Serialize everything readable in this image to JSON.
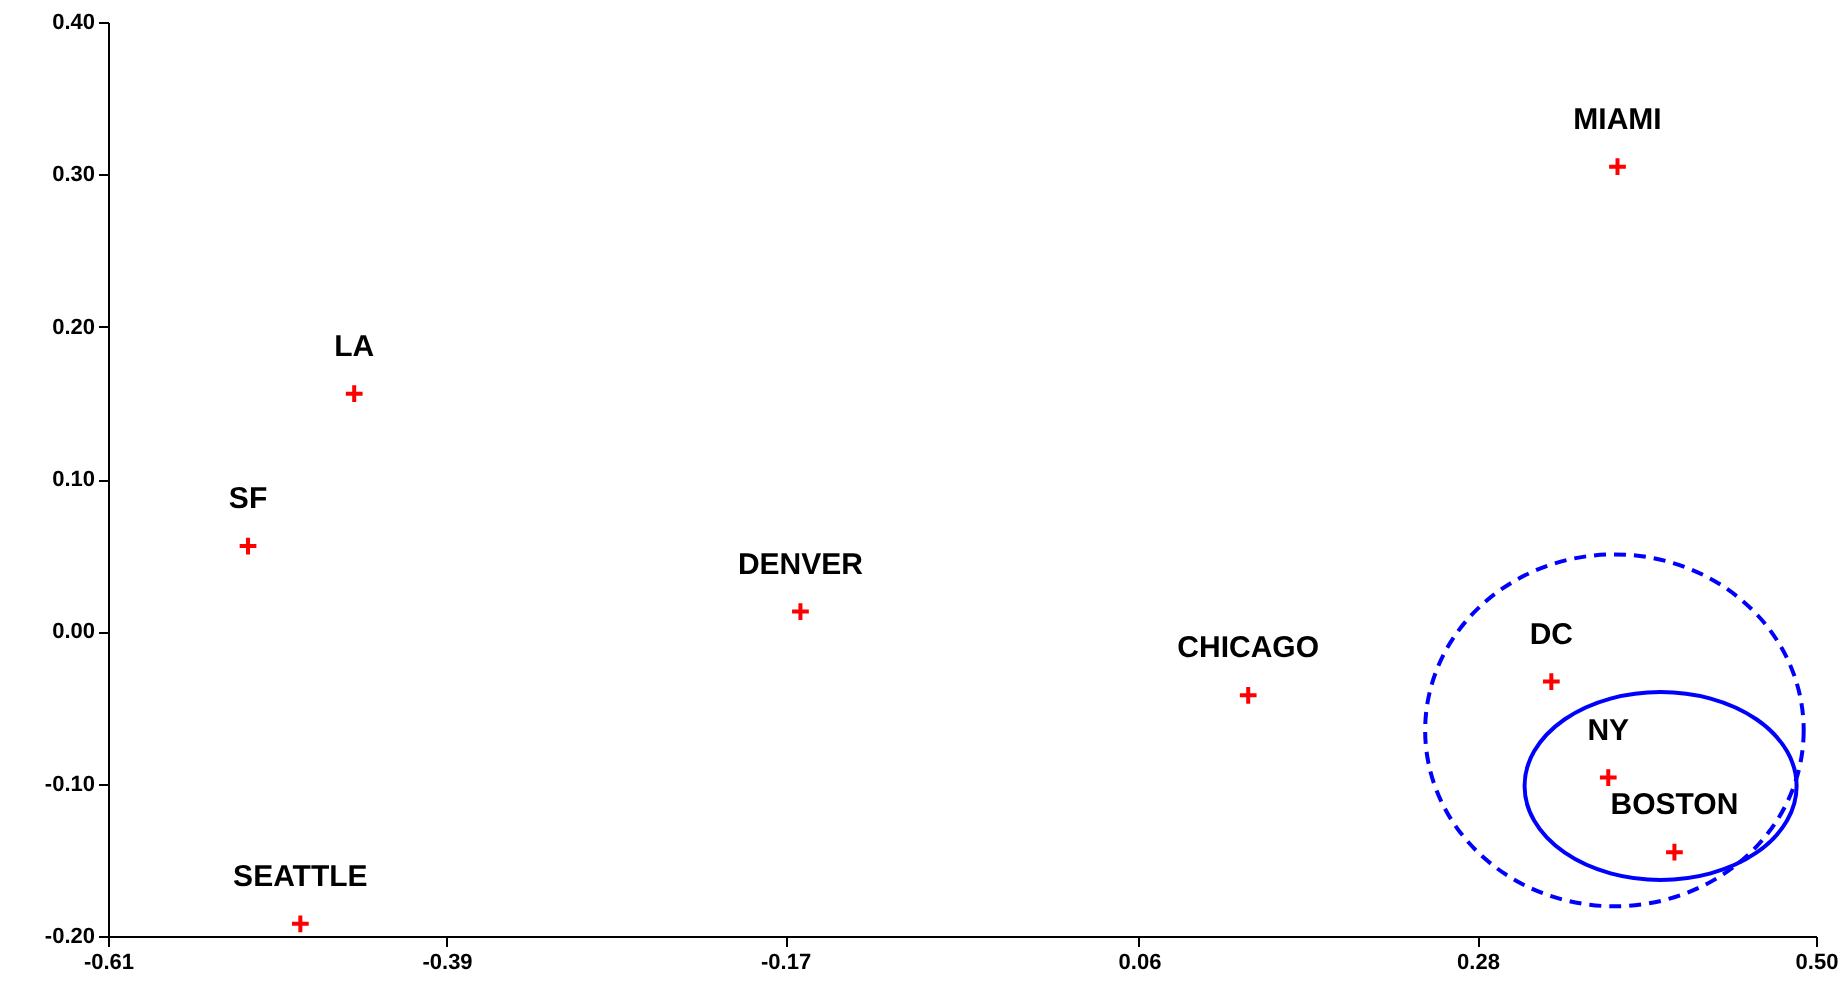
{
  "chart_data": {
    "type": "scatter",
    "marker": "cross",
    "grid": false,
    "xlim": [
      -0.61,
      0.5
    ],
    "xticks": [
      -0.61,
      -0.39,
      -0.17,
      0.06,
      0.28,
      {
        "value": 0.5,
        "label": "0.50"
      }
    ],
    "ylim": [
      -0.2,
      0.4
    ],
    "yticks": [
      {
        "value": -0.2,
        "label": "-0.20"
      },
      {
        "value": -0.1,
        "label": "-0.10"
      },
      {
        "value": 0,
        "label": "0.00"
      },
      {
        "value": 0.1,
        "label": "0.10"
      },
      {
        "value": 0.2,
        "label": "0.20"
      },
      {
        "value": 0.3,
        "label": "0.30"
      },
      {
        "value": 0.4,
        "label": "0.40"
      }
    ],
    "series": [
      {
        "type": "scatter",
        "color": "#ff0000",
        "x": [
          0.371,
          -0.45,
          -0.519,
          -0.16,
          0.131,
          0.328,
          0.365,
          0.408,
          -0.485
        ],
        "values": [
          0.305,
          0.156,
          0.056,
          0.013,
          -0.042,
          -0.033,
          -0.096,
          -0.145,
          -0.192
        ]
      }
    ],
    "annotations": [
      {
        "text": "MIAMI",
        "x": 0.371,
        "y": 0.305
      },
      {
        "text": "LA",
        "x": -0.45,
        "y": 0.156
      },
      {
        "text": "SF",
        "x": -0.519,
        "y": 0.056
      },
      {
        "text": "DENVER",
        "x": -0.16,
        "y": 0.013
      },
      {
        "text": "CHICAGO",
        "x": 0.131,
        "y": -0.042
      },
      {
        "text": "DC",
        "x": 0.328,
        "y": -0.033
      },
      {
        "text": "NY",
        "x": 0.365,
        "y": -0.096
      },
      {
        "text": "BOSTON",
        "x": 0.408,
        "y": -0.145
      },
      {
        "text": "SEATTLE",
        "x": -0.485,
        "y": -0.192
      }
    ]
  }
}
